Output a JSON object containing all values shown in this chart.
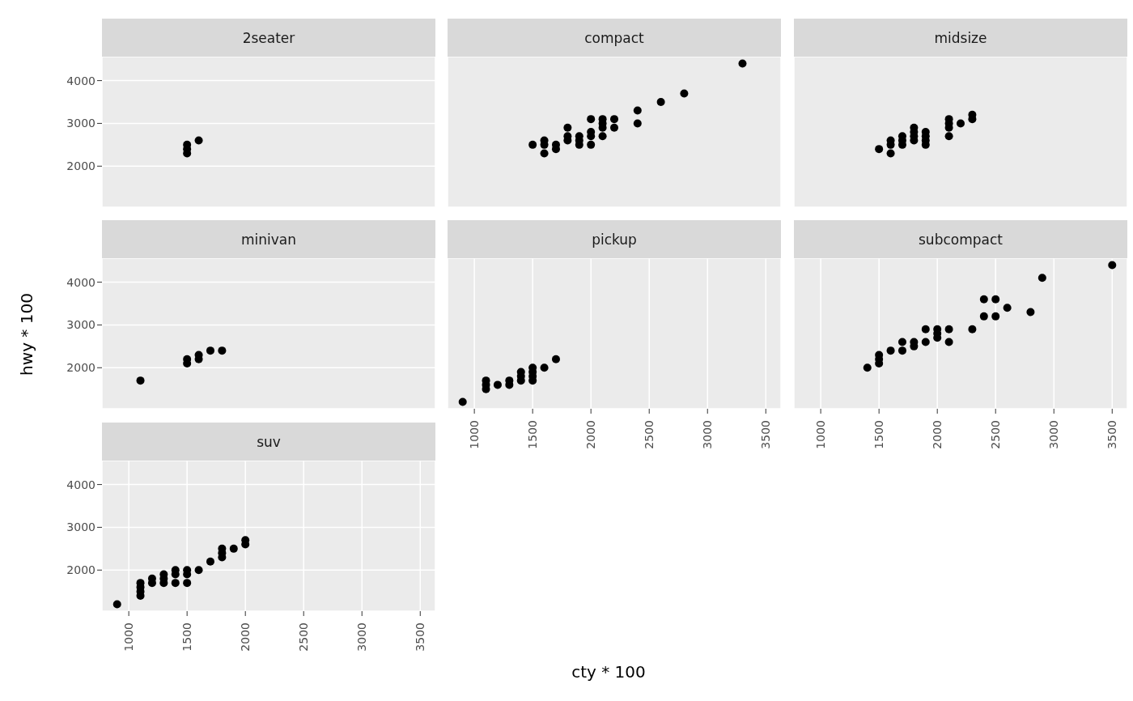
{
  "chart_data": [
    {
      "type": "scatter",
      "title": "2seater",
      "x": [
        1500,
        1500,
        1500,
        1600
      ],
      "values": [
        2300,
        2400,
        2500,
        2600
      ],
      "color": "#000000",
      "marker": "circle",
      "xlim": [
        770,
        3630
      ],
      "ylim": [
        1040,
        4560
      ],
      "xticks": [
        1000,
        1500,
        2000,
        2500,
        3000,
        3500
      ],
      "yticks": [
        2000,
        3000,
        4000
      ],
      "grid": true,
      "tick_labels": "y"
    },
    {
      "type": "scatter",
      "title": "compact",
      "x": [
        1500,
        1600,
        1600,
        1600,
        1700,
        1700,
        1800,
        1800,
        1800,
        1900,
        1900,
        1900,
        2000,
        2000,
        2000,
        2000,
        2100,
        2100,
        2100,
        2100,
        2200,
        2200,
        2400,
        2400,
        2600,
        2800,
        3300
      ],
      "values": [
        2500,
        2300,
        2500,
        2600,
        2400,
        2500,
        2600,
        2700,
        2900,
        2500,
        2600,
        2700,
        2500,
        2700,
        2800,
        3100,
        2700,
        2900,
        3000,
        3100,
        2900,
        3100,
        3000,
        3300,
        3500,
        3700,
        4400
      ],
      "color": "#000000",
      "marker": "circle",
      "xlim": [
        770,
        3630
      ],
      "ylim": [
        1040,
        4560
      ],
      "xticks": [
        1000,
        1500,
        2000,
        2500,
        3000,
        3500
      ],
      "yticks": [
        2000,
        3000,
        4000
      ],
      "grid": true,
      "tick_labels": false
    },
    {
      "type": "scatter",
      "title": "midsize",
      "x": [
        1500,
        1600,
        1600,
        1600,
        1700,
        1700,
        1700,
        1800,
        1800,
        1800,
        1800,
        1900,
        1900,
        1900,
        1900,
        2100,
        2100,
        2100,
        2100,
        2200,
        2300,
        2300
      ],
      "values": [
        2400,
        2300,
        2500,
        2600,
        2500,
        2600,
        2700,
        2600,
        2700,
        2800,
        2900,
        2500,
        2600,
        2700,
        2800,
        2700,
        2900,
        3000,
        3100,
        3000,
        3100,
        3200
      ],
      "color": "#000000",
      "marker": "circle",
      "xlim": [
        770,
        3630
      ],
      "ylim": [
        1040,
        4560
      ],
      "xticks": [
        1000,
        1500,
        2000,
        2500,
        3000,
        3500
      ],
      "yticks": [
        2000,
        3000,
        4000
      ],
      "grid": true,
      "tick_labels": false
    },
    {
      "type": "scatter",
      "title": "minivan",
      "ylabel": "hwy * 100",
      "x": [
        1100,
        1500,
        1500,
        1600,
        1600,
        1700,
        1800
      ],
      "values": [
        1700,
        2100,
        2200,
        2200,
        2300,
        2400,
        2400
      ],
      "color": "#000000",
      "marker": "circle",
      "xlim": [
        770,
        3630
      ],
      "ylim": [
        1040,
        4560
      ],
      "xticks": [
        1000,
        1500,
        2000,
        2500,
        3000,
        3500
      ],
      "yticks": [
        2000,
        3000,
        4000
      ],
      "grid": true,
      "tick_labels": "y"
    },
    {
      "type": "scatter",
      "title": "pickup",
      "xlabel": "cty * 100",
      "x": [
        900,
        1100,
        1100,
        1100,
        1200,
        1300,
        1300,
        1400,
        1400,
        1400,
        1500,
        1500,
        1500,
        1500,
        1600,
        1700
      ],
      "values": [
        1200,
        1500,
        1600,
        1700,
        1600,
        1600,
        1700,
        1700,
        1800,
        1900,
        1700,
        1800,
        1900,
        2000,
        2000,
        2200
      ],
      "color": "#000000",
      "marker": "circle",
      "xlim": [
        770,
        3630
      ],
      "ylim": [
        1040,
        4560
      ],
      "xticks": [
        1000,
        1500,
        2000,
        2500,
        3000,
        3500
      ],
      "yticks": [
        2000,
        3000,
        4000
      ],
      "grid": true,
      "tick_labels": "x"
    },
    {
      "type": "scatter",
      "title": "subcompact",
      "x": [
        1400,
        1500,
        1500,
        1500,
        1600,
        1700,
        1700,
        1800,
        1800,
        1900,
        1900,
        2000,
        2000,
        2000,
        2100,
        2100,
        2300,
        2400,
        2400,
        2500,
        2500,
        2600,
        2800,
        2900,
        3500
      ],
      "values": [
        2000,
        2100,
        2200,
        2300,
        2400,
        2400,
        2600,
        2500,
        2600,
        2600,
        2900,
        2700,
        2800,
        2900,
        2600,
        2900,
        2900,
        3200,
        3600,
        3200,
        3600,
        3400,
        3300,
        4100,
        4400
      ],
      "color": "#000000",
      "marker": "circle",
      "xlim": [
        770,
        3630
      ],
      "ylim": [
        1040,
        4560
      ],
      "xticks": [
        1000,
        1500,
        2000,
        2500,
        3000,
        3500
      ],
      "yticks": [
        2000,
        3000,
        4000
      ],
      "grid": true,
      "tick_labels": "x"
    },
    {
      "type": "scatter",
      "title": "suv",
      "x": [
        900,
        1100,
        1100,
        1100,
        1100,
        1200,
        1200,
        1300,
        1300,
        1300,
        1400,
        1400,
        1400,
        1500,
        1500,
        1500,
        1600,
        1700,
        1800,
        1800,
        1800,
        1900,
        2000,
        2000
      ],
      "values": [
        1200,
        1400,
        1500,
        1600,
        1700,
        1700,
        1800,
        1700,
        1800,
        1900,
        1700,
        1900,
        2000,
        1700,
        1900,
        2000,
        2000,
        2200,
        2300,
        2400,
        2500,
        2500,
        2600,
        2700
      ],
      "color": "#000000",
      "marker": "circle",
      "xlim": [
        770,
        3630
      ],
      "ylim": [
        1040,
        4560
      ],
      "xticks": [
        1000,
        1500,
        2000,
        2500,
        3000,
        3500
      ],
      "yticks": [
        2000,
        3000,
        4000
      ],
      "grid": true
    }
  ]
}
